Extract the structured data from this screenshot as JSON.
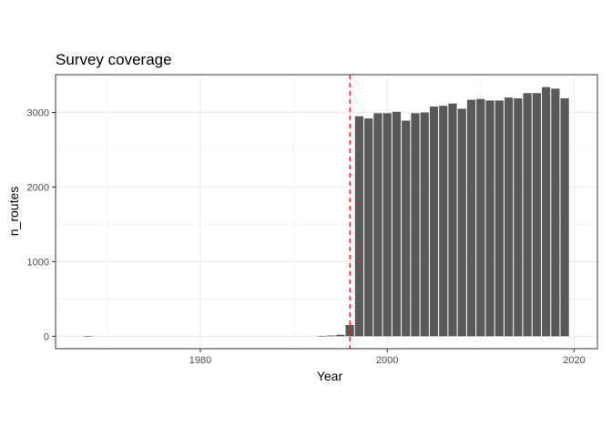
{
  "chart_data": {
    "type": "bar",
    "title": "Survey coverage",
    "xlabel": "Year",
    "ylabel": "n_routes",
    "xlim": [
      1964.5,
      2022.5
    ],
    "ylim": [
      -167,
      3507
    ],
    "xticks": [
      1980,
      2000,
      2020
    ],
    "yticks": [
      0,
      1000,
      2000,
      3000
    ],
    "x_minor_ticks": [
      1970,
      1990,
      2010
    ],
    "y_minor_ticks": [
      500,
      1500,
      2500
    ],
    "grid": true,
    "bar_color": "#595959",
    "reference_line": {
      "orientation": "vertical",
      "x": 1996,
      "color": "#ff0000",
      "style": "dashed"
    },
    "x": [
      1968,
      1993,
      1994,
      1995,
      1996,
      1997,
      1998,
      1999,
      2000,
      2001,
      2002,
      2003,
      2004,
      2005,
      2006,
      2007,
      2008,
      2009,
      2010,
      2011,
      2012,
      2013,
      2014,
      2015,
      2016,
      2017,
      2018,
      2019
    ],
    "values": [
      4,
      5,
      10,
      20,
      150,
      2950,
      2920,
      2990,
      2990,
      3010,
      2890,
      2990,
      3000,
      3080,
      3090,
      3120,
      3050,
      3170,
      3180,
      3160,
      3160,
      3200,
      3190,
      3260,
      3260,
      3340,
      3320,
      3190
    ]
  }
}
